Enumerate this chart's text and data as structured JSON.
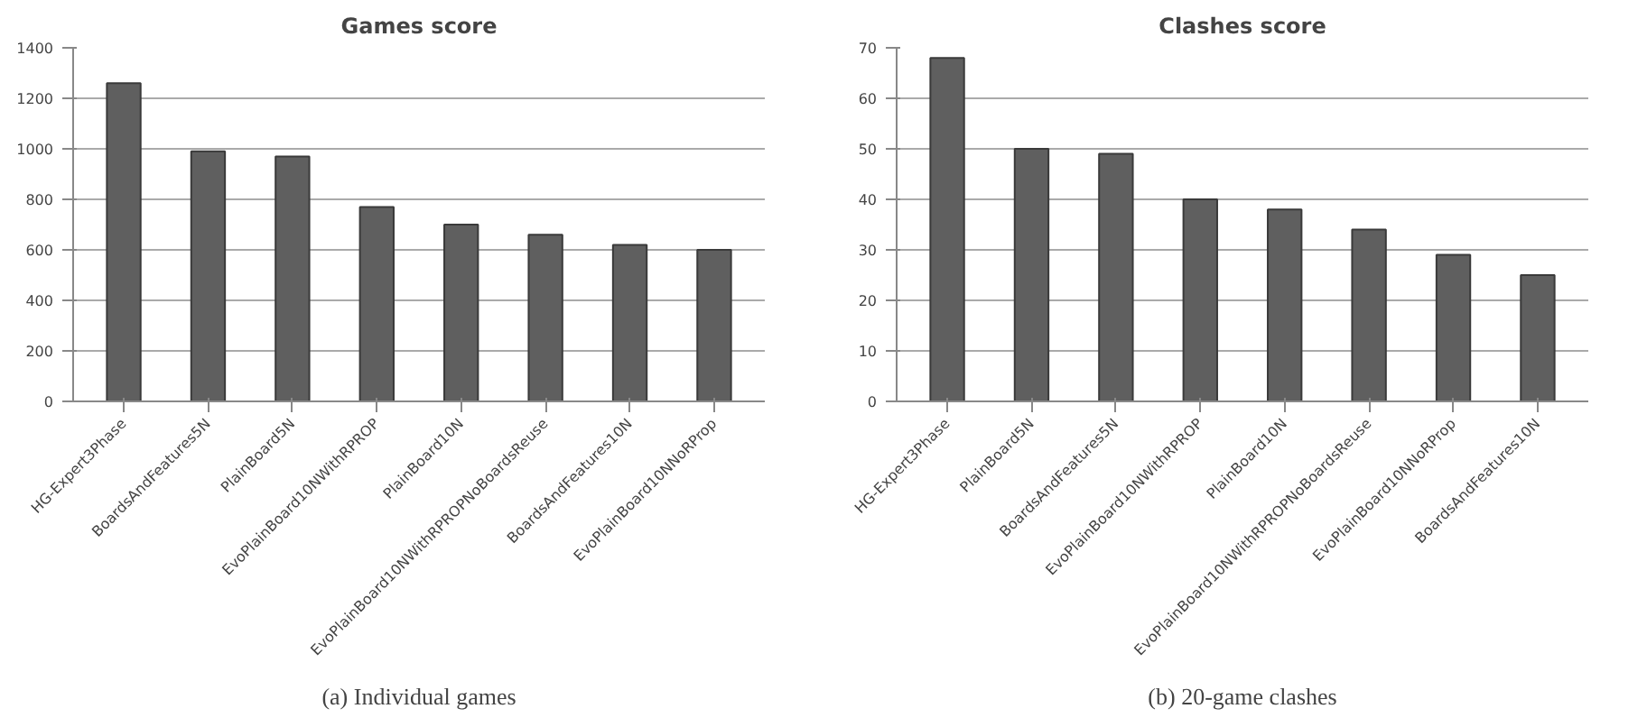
{
  "chart_data": [
    {
      "type": "bar",
      "title": "Games score",
      "categories": [
        "HG-Expert3Phase",
        "BoardsAndFeatures5N",
        "PlainBoard5N",
        "EvoPlainBoard10NWithRPROP",
        "PlainBoard10N",
        "EvoPlainBoard10NWithRPROPNoBoardsReuse",
        "BoardsAndFeatures10N",
        "EvoPlainBoard10NNoRProp"
      ],
      "values": [
        1260,
        990,
        970,
        770,
        700,
        660,
        620,
        600
      ],
      "color": "#5f5f5f",
      "ylim": [
        0,
        1400
      ],
      "yticks": [
        0,
        200,
        400,
        600,
        800,
        1000,
        1200,
        1400
      ],
      "grid": "y",
      "annotations": [
        "(a) Individual games"
      ]
    },
    {
      "type": "bar",
      "title": "Clashes score",
      "categories": [
        "HG-Expert3Phase",
        "PlainBoard5N",
        "BoardsAndFeatures5N",
        "EvoPlainBoard10NWithRPROP",
        "PlainBoard10N",
        "EvoPlainBoard10NWithRPROPNoBoardsReuse",
        "EvoPlainBoard10NNoRProp",
        "BoardsAndFeatures10N"
      ],
      "values": [
        68,
        50,
        49,
        40,
        38,
        34,
        29,
        25
      ],
      "color": "#5f5f5f",
      "ylim": [
        0,
        70
      ],
      "yticks": [
        0,
        10,
        20,
        30,
        40,
        50,
        60,
        70
      ],
      "grid": "y",
      "annotations": [
        "(b) 20-game clashes"
      ]
    }
  ]
}
